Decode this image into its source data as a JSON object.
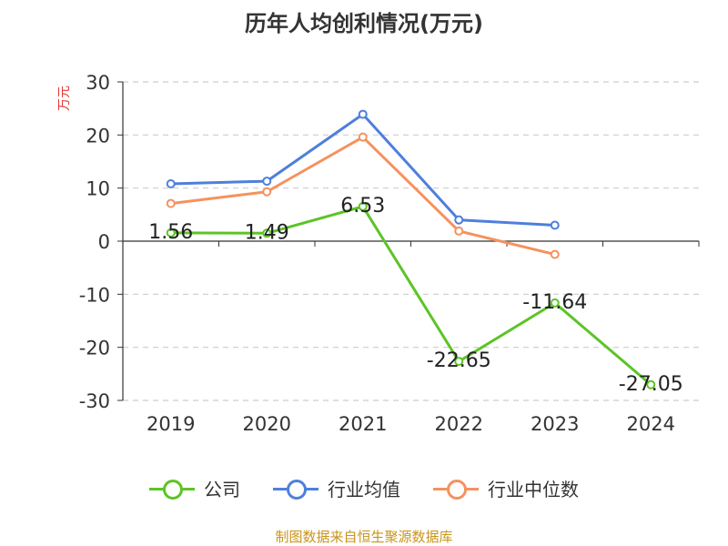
{
  "title": "历年人均创利情况(万元)",
  "source": "制图数据来自恒生聚源数据库",
  "chart_data": {
    "type": "line",
    "title": "历年人均创利情况(万元)",
    "ylabel": "万元",
    "ylim": [
      -30,
      30
    ],
    "yticks": [
      30,
      20,
      10,
      0,
      -10,
      -20,
      -30
    ],
    "categories": [
      "2019",
      "2020",
      "2021",
      "2022",
      "2023",
      "2024"
    ],
    "grid": true,
    "legend_position": "bottom",
    "series": [
      {
        "name": "公司",
        "color": "#5cc427",
        "values": [
          1.56,
          1.49,
          6.53,
          -22.65,
          -11.64,
          -27.05
        ],
        "labels": [
          "1.56",
          "1.49",
          "6.53",
          "-22.65",
          "-11.64",
          "-27.05"
        ]
      },
      {
        "name": "行业均值",
        "color": "#4e7fdc",
        "values": [
          10.8,
          11.3,
          23.9,
          4.0,
          3.0,
          null
        ]
      },
      {
        "name": "行业中位数",
        "color": "#f5925e",
        "values": [
          7.1,
          9.3,
          19.6,
          1.9,
          -2.5,
          null
        ]
      }
    ]
  }
}
